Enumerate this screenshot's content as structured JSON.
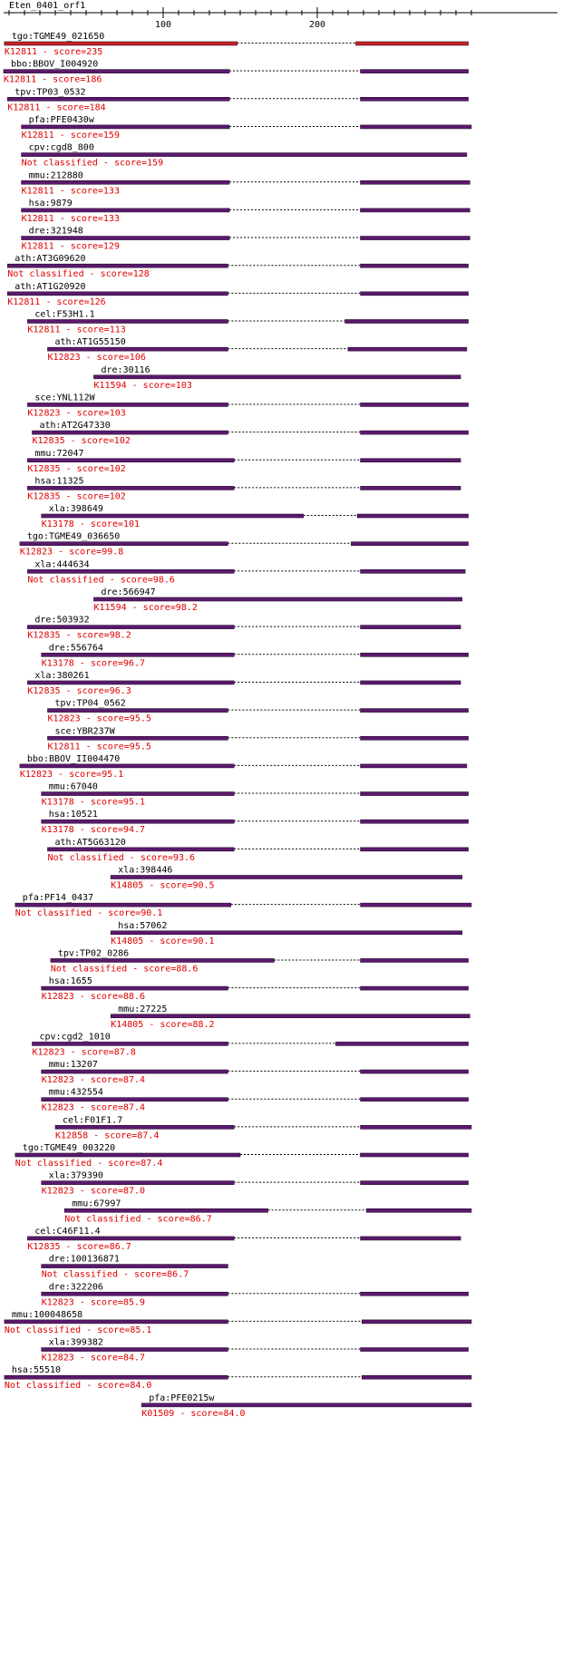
{
  "title": "Eten_0401_orf1",
  "colors": {
    "bar": "#5a1a6b",
    "bar_top": "#2a0a33",
    "highlight": "#cc2222",
    "label": "#000000",
    "sublabel": "#e00000"
  },
  "axis": {
    "min": 0,
    "max": 300,
    "ticks": [
      100,
      200
    ]
  },
  "hits": [
    {
      "name": "tgo:TGME49_021650",
      "desc": "K12811 - score=235",
      "segs": [
        [
          -3,
          148
        ],
        [
          225,
          298
        ]
      ],
      "hl": true
    },
    {
      "name": "bbo:BBOV_I004920",
      "desc": "K12811 - score=186",
      "segs": [
        [
          -9,
          143
        ],
        [
          228,
          298
        ]
      ]
    },
    {
      "name": "tpv:TP03_0532",
      "desc": "K12811 - score=184",
      "segs": [
        [
          -1,
          143
        ],
        [
          228,
          298
        ]
      ]
    },
    {
      "name": "pfa:PFE0430w",
      "desc": "K12811 - score=159",
      "segs": [
        [
          8,
          143
        ],
        [
          228,
          300
        ]
      ]
    },
    {
      "name": "cpv:cgd8_800",
      "desc": "Not classified - score=159",
      "segs": [
        [
          8,
          297
        ]
      ]
    },
    {
      "name": "mmu:212880",
      "desc": "K12811 - score=133",
      "segs": [
        [
          8,
          143
        ],
        [
          228,
          299
        ]
      ]
    },
    {
      "name": "hsa:9879",
      "desc": "K12811 - score=133",
      "segs": [
        [
          8,
          143
        ],
        [
          228,
          299
        ]
      ]
    },
    {
      "name": "dre:321948",
      "desc": "K12811 - score=129",
      "segs": [
        [
          8,
          143
        ],
        [
          228,
          299
        ]
      ]
    },
    {
      "name": "ath:AT3G09620",
      "desc": "Not classified - score=128",
      "segs": [
        [
          -1,
          142
        ],
        [
          228,
          298
        ]
      ]
    },
    {
      "name": "ath:AT1G20920",
      "desc": "K12811 - score=126",
      "segs": [
        [
          -1,
          142
        ],
        [
          228,
          298
        ]
      ]
    },
    {
      "name": "cel:F53H1.1",
      "desc": "K12811 - score=113",
      "segs": [
        [
          12,
          142
        ],
        [
          218,
          298
        ]
      ]
    },
    {
      "name": "ath:AT1G55150",
      "desc": "K12823 - score=106",
      "segs": [
        [
          25,
          142
        ],
        [
          220,
          297
        ]
      ]
    },
    {
      "name": "dre:30116",
      "desc": "K11594 - score=103",
      "segs": [
        [
          55,
          293
        ]
      ]
    },
    {
      "name": "sce:YNL112W",
      "desc": "K12823 - score=103",
      "segs": [
        [
          12,
          142
        ],
        [
          228,
          298
        ]
      ]
    },
    {
      "name": "ath:AT2G47330",
      "desc": "K12835 - score=102",
      "segs": [
        [
          15,
          142
        ],
        [
          228,
          298
        ]
      ]
    },
    {
      "name": "mmu:72047",
      "desc": "K12835 - score=102",
      "segs": [
        [
          12,
          146
        ],
        [
          228,
          293
        ]
      ]
    },
    {
      "name": "hsa:11325",
      "desc": "K12835 - score=102",
      "segs": [
        [
          12,
          146
        ],
        [
          228,
          293
        ]
      ]
    },
    {
      "name": "xla:398649",
      "desc": "K13178 - score=101",
      "segs": [
        [
          21,
          191
        ],
        [
          226,
          298
        ]
      ]
    },
    {
      "name": "tgo:TGME49_036650",
      "desc": "K12823 - score=99.8",
      "segs": [
        [
          7,
          142
        ],
        [
          222,
          298
        ]
      ]
    },
    {
      "name": "xla:444634",
      "desc": "Not classified - score=98.6",
      "segs": [
        [
          12,
          146
        ],
        [
          228,
          296
        ]
      ]
    },
    {
      "name": "dre:566947",
      "desc": "K11594 - score=98.2",
      "segs": [
        [
          55,
          294
        ]
      ]
    },
    {
      "name": "dre:503932",
      "desc": "K12835 - score=98.2",
      "segs": [
        [
          12,
          146
        ],
        [
          228,
          293
        ]
      ]
    },
    {
      "name": "dre:556764",
      "desc": "K13178 - score=96.7",
      "segs": [
        [
          21,
          146
        ],
        [
          228,
          298
        ]
      ]
    },
    {
      "name": "xla:380261",
      "desc": "K12835 - score=96.3",
      "segs": [
        [
          12,
          146
        ],
        [
          228,
          293
        ]
      ]
    },
    {
      "name": "tpv:TP04_0562",
      "desc": "K12823 - score=95.5",
      "segs": [
        [
          25,
          142
        ],
        [
          228,
          298
        ]
      ]
    },
    {
      "name": "sce:YBR237W",
      "desc": "K12811 - score=95.5",
      "segs": [
        [
          25,
          142
        ],
        [
          228,
          298
        ]
      ]
    },
    {
      "name": "bbo:BBOV_II004470",
      "desc": "K12823 - score=95.1",
      "segs": [
        [
          7,
          146
        ],
        [
          228,
          297
        ]
      ]
    },
    {
      "name": "mmu:67040",
      "desc": "K13178 - score=95.1",
      "segs": [
        [
          21,
          146
        ],
        [
          228,
          298
        ]
      ]
    },
    {
      "name": "hsa:10521",
      "desc": "K13178 - score=94.7",
      "segs": [
        [
          21,
          146
        ],
        [
          228,
          298
        ]
      ]
    },
    {
      "name": "ath:AT5G63120",
      "desc": "Not classified - score=93.6",
      "segs": [
        [
          25,
          146
        ],
        [
          228,
          298
        ]
      ]
    },
    {
      "name": "xla:398446",
      "desc": "K14805 - score=90.5",
      "segs": [
        [
          66,
          294
        ]
      ]
    },
    {
      "name": "pfa:PF14_0437",
      "desc": "Not classified - score=90.1",
      "segs": [
        [
          4,
          144
        ],
        [
          228,
          300
        ]
      ]
    },
    {
      "name": "hsa:57062",
      "desc": "K14805 - score=90.1",
      "segs": [
        [
          66,
          294
        ]
      ]
    },
    {
      "name": "tpv:TP02_0286",
      "desc": "Not classified - score=88.6",
      "segs": [
        [
          27,
          172
        ],
        [
          228,
          298
        ]
      ]
    },
    {
      "name": "hsa:1655",
      "desc": "K12823 - score=88.6",
      "segs": [
        [
          21,
          142
        ],
        [
          228,
          298
        ]
      ]
    },
    {
      "name": "mmu:27225",
      "desc": "K14805 - score=88.2",
      "segs": [
        [
          66,
          299
        ]
      ]
    },
    {
      "name": "cpv:cgd2_1010",
      "desc": "K12823 - score=87.8",
      "segs": [
        [
          15,
          142
        ],
        [
          212,
          298
        ]
      ]
    },
    {
      "name": "mmu:13207",
      "desc": "K12823 - score=87.4",
      "segs": [
        [
          21,
          142
        ],
        [
          228,
          298
        ]
      ]
    },
    {
      "name": "mmu:432554",
      "desc": "K12823 - score=87.4",
      "segs": [
        [
          21,
          142
        ],
        [
          228,
          298
        ]
      ]
    },
    {
      "name": "cel:F01F1.7",
      "desc": "K12858 - score=87.4",
      "segs": [
        [
          30,
          146
        ],
        [
          228,
          300
        ]
      ]
    },
    {
      "name": "tgo:TGME49_003220",
      "desc": "Not classified - score=87.4",
      "segs": [
        [
          4,
          150
        ],
        [
          228,
          298
        ]
      ]
    },
    {
      "name": "xla:379390",
      "desc": "K12823 - score=87.0",
      "segs": [
        [
          21,
          146
        ],
        [
          228,
          298
        ]
      ]
    },
    {
      "name": "mmu:67997",
      "desc": "Not classified - score=86.7",
      "segs": [
        [
          36,
          168
        ],
        [
          232,
          300
        ]
      ]
    },
    {
      "name": "cel:C46F11.4",
      "desc": "K12835 - score=86.7",
      "segs": [
        [
          12,
          146
        ],
        [
          228,
          293
        ]
      ]
    },
    {
      "name": "dre:100136871",
      "desc": "Not classified - score=86.7",
      "segs": [
        [
          21,
          142
        ]
      ]
    },
    {
      "name": "dre:322206",
      "desc": "K12823 - score=85.9",
      "segs": [
        [
          21,
          142
        ],
        [
          228,
          298
        ]
      ]
    },
    {
      "name": "mmu:100048658",
      "desc": "Not classified - score=85.1",
      "segs": [
        [
          -3,
          142
        ],
        [
          229,
          300
        ]
      ]
    },
    {
      "name": "xla:399382",
      "desc": "K12823 - score=84.7",
      "segs": [
        [
          21,
          142
        ],
        [
          228,
          298
        ]
      ]
    },
    {
      "name": "hsa:55510",
      "desc": "Not classified - score=84.0",
      "segs": [
        [
          -3,
          142
        ],
        [
          229,
          300
        ]
      ]
    },
    {
      "name": "pfa:PFE0215w",
      "desc": "K01509 - score=84.0",
      "segs": [
        [
          86,
          300
        ]
      ]
    }
  ]
}
